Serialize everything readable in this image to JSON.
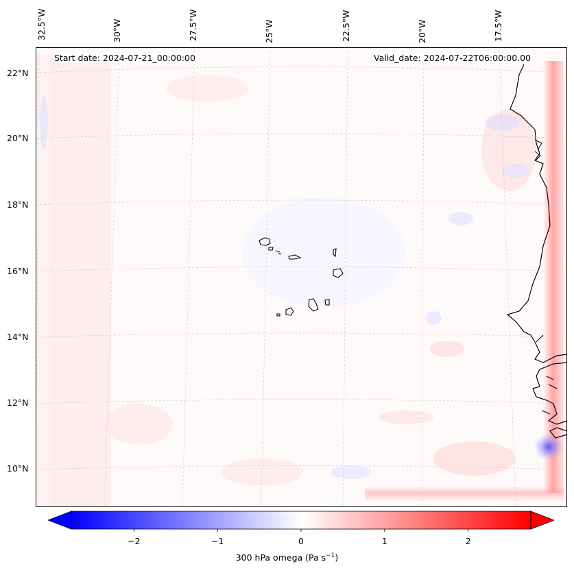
{
  "map": {
    "lon_labels": [
      "32.5°W",
      "30°W",
      "27.5°W",
      "25°W",
      "22.5°W",
      "20°W",
      "17.5°W"
    ],
    "lat_labels": [
      "22°N",
      "20°N",
      "18°N",
      "16°N",
      "14°N",
      "12°N",
      "10°N"
    ],
    "start_date": "Start date: 2024-07-21_00:00:00",
    "valid_date": "Valid_date: 2024-07-22T06:00:00.00"
  },
  "colorbar": {
    "ticks": [
      "−2",
      "−1",
      "0",
      "1",
      "2"
    ],
    "tick_values": [
      -2,
      -1,
      0,
      1,
      2
    ],
    "vmin": -2.75,
    "vmax": 2.75,
    "title": "300 hPa omega (Pa s",
    "title_sup": "−1",
    "title_close": ")",
    "low_color": "#0000ff",
    "mid_color": "#ffffff",
    "high_color": "#ff0000"
  }
}
